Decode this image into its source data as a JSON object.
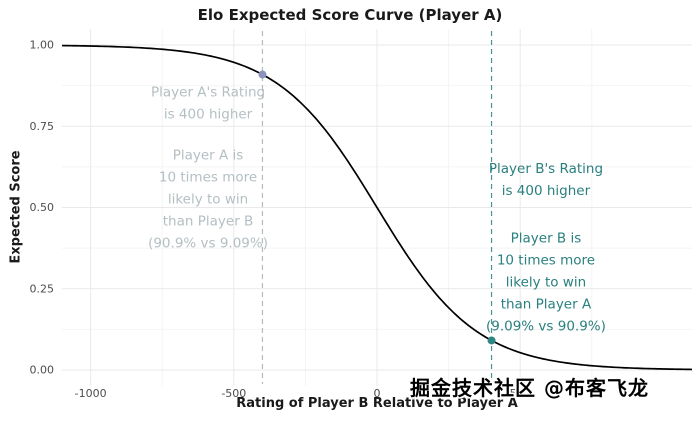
{
  "watermark": "掘金技术社区 @布客飞龙",
  "chart_data": {
    "type": "line",
    "title": "Elo Expected Score Curve (Player A)",
    "xlabel": "Rating of Player B Relative to Player A",
    "ylabel": "Expected Score",
    "xlim": [
      -1100,
      1100
    ],
    "ylim": [
      -0.05,
      1.05
    ],
    "grid": true,
    "legend_position": "none",
    "x_tick_values": [
      -1000,
      -500,
      0,
      500
    ],
    "x_tick_labels": [
      "-1000",
      "-500",
      "0",
      "500"
    ],
    "x_minor_gridlines": [
      -750,
      -250,
      250,
      750
    ],
    "y_tick_values": [
      0,
      0.25,
      0.5,
      0.75,
      1
    ],
    "y_tick_labels": [
      "0.00",
      "0.25",
      "0.50",
      "0.75",
      "1.00"
    ],
    "y_minor_gridlines": [
      0.125,
      0.375,
      0.625,
      0.875
    ],
    "curve": {
      "name": "Expected score for Player A",
      "color": "#000000",
      "formula": "E_A = 1 / (1 + 10^((R_B - R_A) / 400))",
      "log_base": 10,
      "rating_scale": 400,
      "points": [
        [
          -1100,
          0.9982
        ],
        [
          -1000,
          0.9968
        ],
        [
          -900,
          0.9944
        ],
        [
          -800,
          0.9901
        ],
        [
          -700,
          0.9825
        ],
        [
          -600,
          0.9694
        ],
        [
          -500,
          0.9468
        ],
        [
          -400,
          0.9091
        ],
        [
          -300,
          0.849
        ],
        [
          -200,
          0.7598
        ],
        [
          -100,
          0.6401
        ],
        [
          0,
          0.5
        ],
        [
          100,
          0.3599
        ],
        [
          200,
          0.2402
        ],
        [
          300,
          0.151
        ],
        [
          400,
          0.0909
        ],
        [
          500,
          0.0532
        ],
        [
          600,
          0.0306
        ],
        [
          700,
          0.0175
        ],
        [
          800,
          0.0099
        ],
        [
          900,
          0.0056
        ],
        [
          1000,
          0.0032
        ],
        [
          1100,
          0.0018
        ]
      ]
    },
    "vlines": [
      {
        "x": -400,
        "style": "dashed",
        "color": "#aebdc0"
      },
      {
        "x": 400,
        "style": "dashed",
        "color": "#4b9393"
      }
    ],
    "highlight_points": [
      {
        "x": -400,
        "y": 0.9091,
        "color": "#8b92bb"
      },
      {
        "x": 400,
        "y": 0.0909,
        "color": "#2e8585"
      }
    ],
    "annotations": [
      {
        "id": "player-a-rating",
        "x": -590,
        "y": 0.82,
        "color": "#b4bfc3",
        "lines": [
          "Player A's Rating",
          "is 400 higher"
        ]
      },
      {
        "id": "player-a-odds",
        "x": -590,
        "y": 0.525,
        "color": "#b4bfc3",
        "lines": [
          "Player A is",
          "10 times more",
          "likely to win",
          "than Player B",
          "(90.9% vs 9.09%)"
        ]
      },
      {
        "id": "player-b-rating",
        "x": 590,
        "y": 0.585,
        "color": "#2a7f7f",
        "lines": [
          "Player B's Rating",
          "is 400 higher"
        ]
      },
      {
        "id": "player-b-odds",
        "x": 590,
        "y": 0.27,
        "color": "#2a7f7f",
        "lines": [
          "Player B is",
          "10 times more",
          "likely to win",
          "than Player A",
          "(9.09% vs 90.9%)"
        ]
      }
    ]
  }
}
